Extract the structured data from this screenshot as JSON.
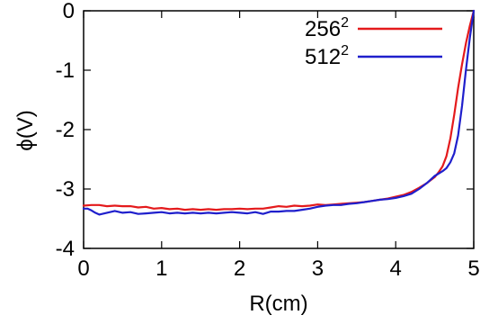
{
  "chart_data": {
    "type": "line",
    "xlabel": "R(cm)",
    "ylabel": "ϕ(V)",
    "xlim": [
      0,
      5
    ],
    "ylim": [
      -4,
      0
    ],
    "xticks": [
      0,
      1,
      2,
      3,
      4,
      5
    ],
    "yticks": [
      -4,
      -3,
      -2,
      -1,
      0
    ],
    "xtick_labels": [
      "0",
      "1",
      "2",
      "3",
      "4",
      "5"
    ],
    "ytick_labels": [
      "-4",
      "-3",
      "-2",
      "-1",
      "0"
    ],
    "grid": false,
    "legend_position": "top-right",
    "series": [
      {
        "name_base": "256",
        "name_exp": "2",
        "color": "#e41a1c",
        "x": [
          0.0,
          0.1,
          0.2,
          0.3,
          0.4,
          0.5,
          0.6,
          0.7,
          0.8,
          0.9,
          1.0,
          1.1,
          1.2,
          1.3,
          1.4,
          1.5,
          1.6,
          1.7,
          1.8,
          1.9,
          2.0,
          2.1,
          2.2,
          2.3,
          2.4,
          2.5,
          2.6,
          2.7,
          2.8,
          2.9,
          3.0,
          3.1,
          3.2,
          3.3,
          3.4,
          3.5,
          3.6,
          3.7,
          3.8,
          3.9,
          4.0,
          4.1,
          4.2,
          4.3,
          4.4,
          4.5,
          4.55,
          4.6,
          4.65,
          4.7,
          4.75,
          4.8,
          4.85,
          4.9,
          4.95,
          5.0
        ],
        "y": [
          -3.28,
          -3.27,
          -3.27,
          -3.29,
          -3.28,
          -3.29,
          -3.29,
          -3.31,
          -3.3,
          -3.33,
          -3.32,
          -3.34,
          -3.33,
          -3.35,
          -3.34,
          -3.35,
          -3.34,
          -3.35,
          -3.34,
          -3.34,
          -3.33,
          -3.34,
          -3.33,
          -3.33,
          -3.31,
          -3.29,
          -3.3,
          -3.28,
          -3.29,
          -3.28,
          -3.26,
          -3.27,
          -3.26,
          -3.25,
          -3.24,
          -3.23,
          -3.22,
          -3.2,
          -3.18,
          -3.16,
          -3.13,
          -3.1,
          -3.05,
          -2.98,
          -2.9,
          -2.8,
          -2.72,
          -2.62,
          -2.45,
          -2.15,
          -1.75,
          -1.3,
          -0.9,
          -0.55,
          -0.25,
          0.0
        ]
      },
      {
        "name_base": "512",
        "name_exp": "2",
        "color": "#1f1fcc",
        "x": [
          0.0,
          0.05,
          0.1,
          0.15,
          0.2,
          0.3,
          0.4,
          0.5,
          0.6,
          0.7,
          0.8,
          0.9,
          1.0,
          1.1,
          1.2,
          1.3,
          1.4,
          1.5,
          1.6,
          1.7,
          1.8,
          1.9,
          2.0,
          2.1,
          2.2,
          2.3,
          2.4,
          2.5,
          2.6,
          2.7,
          2.8,
          2.9,
          3.0,
          3.1,
          3.2,
          3.3,
          3.4,
          3.5,
          3.6,
          3.7,
          3.8,
          3.9,
          4.0,
          4.1,
          4.2,
          4.3,
          4.4,
          4.5,
          4.6,
          4.65,
          4.7,
          4.75,
          4.8,
          4.85,
          4.9,
          4.95,
          5.0
        ],
        "y": [
          -3.33,
          -3.33,
          -3.36,
          -3.4,
          -3.43,
          -3.4,
          -3.37,
          -3.4,
          -3.39,
          -3.42,
          -3.41,
          -3.4,
          -3.39,
          -3.41,
          -3.4,
          -3.41,
          -3.4,
          -3.41,
          -3.4,
          -3.41,
          -3.4,
          -3.39,
          -3.4,
          -3.41,
          -3.39,
          -3.42,
          -3.38,
          -3.38,
          -3.37,
          -3.37,
          -3.35,
          -3.33,
          -3.3,
          -3.28,
          -3.27,
          -3.27,
          -3.25,
          -3.24,
          -3.22,
          -3.2,
          -3.18,
          -3.17,
          -3.15,
          -3.12,
          -3.08,
          -3.0,
          -2.9,
          -2.78,
          -2.7,
          -2.65,
          -2.55,
          -2.4,
          -2.1,
          -1.6,
          -1.0,
          -0.45,
          0.0
        ]
      }
    ]
  }
}
